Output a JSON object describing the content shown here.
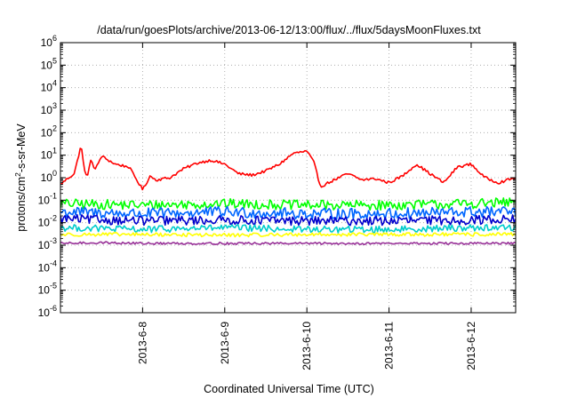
{
  "chart_data": {
    "type": "line",
    "title": "/data/run/goesPlots/archive/2013-06-12/13:00/flux/../flux/5daysMoonFluxes.txt",
    "xlabel": "Coordinated Universal Time (UTC)",
    "ylabel": {
      "prefix": "protons/cm",
      "superscript": "2",
      "suffix": "-s-sr-MeV"
    },
    "yscale": "log",
    "ylim": [
      1e-06,
      1000000.0
    ],
    "y_ticks": [
      {
        "value": 1e-06,
        "base": "10",
        "exp": "-6"
      },
      {
        "value": 1e-05,
        "base": "10",
        "exp": "-5"
      },
      {
        "value": 0.0001,
        "base": "10",
        "exp": "-4"
      },
      {
        "value": 0.001,
        "base": "10",
        "exp": "-3"
      },
      {
        "value": 0.01,
        "base": "10",
        "exp": "-2"
      },
      {
        "value": 0.1,
        "base": "10",
        "exp": "-1"
      },
      {
        "value": 1,
        "base": "10",
        "exp": "0"
      },
      {
        "value": 10,
        "base": "10",
        "exp": "1"
      },
      {
        "value": 100,
        "base": "10",
        "exp": "2"
      },
      {
        "value": 1000,
        "base": "10",
        "exp": "3"
      },
      {
        "value": 10000,
        "base": "10",
        "exp": "4"
      },
      {
        "value": 100000,
        "base": "10",
        "exp": "5"
      },
      {
        "value": 1000000,
        "base": "10",
        "exp": "6"
      }
    ],
    "xlim": [
      "2013-06-07T00:00",
      "2013-06-12T13:00"
    ],
    "x_ticks": [
      {
        "value": "2013-06-08T00:00",
        "label": "2013-6-8"
      },
      {
        "value": "2013-06-09T00:00",
        "label": "2013-6-9"
      },
      {
        "value": "2013-06-10T00:00",
        "label": "2013-6-10"
      },
      {
        "value": "2013-06-11T00:00",
        "label": "2013-6-11"
      },
      {
        "value": "2013-06-12T00:00",
        "label": "2013-6-12"
      }
    ],
    "grid": true,
    "series": [
      {
        "color": "#ff0000",
        "x": [
          "2013-06-07T00:00",
          "2013-06-07T02:00",
          "2013-06-07T04:00",
          "2013-06-07T05:00",
          "2013-06-07T06:00",
          "2013-06-07T07:00",
          "2013-06-07T08:00",
          "2013-06-07T09:00",
          "2013-06-07T10:00",
          "2013-06-07T12:00",
          "2013-06-07T16:00",
          "2013-06-07T20:00",
          "2013-06-08T00:00",
          "2013-06-08T01:00",
          "2013-06-08T02:00",
          "2013-06-08T04:00",
          "2013-06-08T08:00",
          "2013-06-08T12:00",
          "2013-06-08T16:00",
          "2013-06-08T20:00",
          "2013-06-09T00:00",
          "2013-06-09T04:00",
          "2013-06-09T08:00",
          "2013-06-09T12:00",
          "2013-06-09T16:00",
          "2013-06-09T20:00",
          "2013-06-10T00:00",
          "2013-06-10T02:00",
          "2013-06-10T04:00",
          "2013-06-10T08:00",
          "2013-06-10T12:00",
          "2013-06-10T16:00",
          "2013-06-10T20:00",
          "2013-06-11T00:00",
          "2013-06-11T04:00",
          "2013-06-11T08:00",
          "2013-06-11T12:00",
          "2013-06-11T16:00",
          "2013-06-11T20:00",
          "2013-06-12T00:00",
          "2013-06-12T04:00",
          "2013-06-12T08:00",
          "2013-06-12T13:00"
        ],
        "y": [
          0.5,
          0.9,
          1.5,
          6,
          30,
          2,
          1.2,
          8,
          2,
          9,
          4,
          3,
          0.3,
          0.5,
          1.2,
          0.8,
          1,
          2.5,
          4.5,
          6,
          4,
          1.5,
          1.3,
          2,
          4,
          12,
          15,
          5,
          0.4,
          0.8,
          1.5,
          0.8,
          0.9,
          0.6,
          1.2,
          4,
          1.5,
          0.6,
          3,
          4,
          1,
          0.6,
          1
        ]
      },
      {
        "color": "#00ff00",
        "x": [
          "2013-06-07T00:00",
          "2013-06-08T00:00",
          "2013-06-09T00:00",
          "2013-06-10T00:00",
          "2013-06-11T00:00",
          "2013-06-12T00:00",
          "2013-06-12T13:00"
        ],
        "y": [
          0.07,
          0.06,
          0.07,
          0.06,
          0.06,
          0.07,
          0.08
        ]
      },
      {
        "color": "#0066ff",
        "x": [
          "2013-06-07T00:00",
          "2013-06-08T00:00",
          "2013-06-09T00:00",
          "2013-06-10T00:00",
          "2013-06-11T00:00",
          "2013-06-12T00:00",
          "2013-06-12T13:00"
        ],
        "y": [
          0.03,
          0.025,
          0.03,
          0.025,
          0.025,
          0.03,
          0.03
        ]
      },
      {
        "color": "#0000cc",
        "x": [
          "2013-06-07T00:00",
          "2013-06-08T00:00",
          "2013-06-09T00:00",
          "2013-06-10T00:00",
          "2013-06-11T00:00",
          "2013-06-12T00:00",
          "2013-06-12T13:00"
        ],
        "y": [
          0.015,
          0.012,
          0.013,
          0.012,
          0.012,
          0.013,
          0.015
        ]
      },
      {
        "color": "#00cccc",
        "x": [
          "2013-06-07T00:00",
          "2013-06-08T00:00",
          "2013-06-09T00:00",
          "2013-06-10T00:00",
          "2013-06-11T00:00",
          "2013-06-12T00:00",
          "2013-06-12T13:00"
        ],
        "y": [
          0.006,
          0.005,
          0.006,
          0.005,
          0.005,
          0.006,
          0.006
        ]
      },
      {
        "color": "#ffff00",
        "x": [
          "2013-06-07T00:00",
          "2013-06-08T00:00",
          "2013-06-09T00:00",
          "2013-06-10T00:00",
          "2013-06-11T00:00",
          "2013-06-12T00:00",
          "2013-06-12T13:00"
        ],
        "y": [
          0.003,
          0.003,
          0.0028,
          0.003,
          0.003,
          0.003,
          0.003
        ]
      },
      {
        "color": "#993399",
        "x": [
          "2013-06-07T00:00",
          "2013-06-07T12:00",
          "2013-06-08T00:00",
          "2013-06-09T00:00",
          "2013-06-10T00:00",
          "2013-06-11T00:00",
          "2013-06-12T00:00",
          "2013-06-12T13:00"
        ],
        "y": [
          0.0012,
          0.0013,
          0.0012,
          0.0012,
          0.0012,
          0.0012,
          0.0012,
          0.0012
        ]
      }
    ]
  }
}
